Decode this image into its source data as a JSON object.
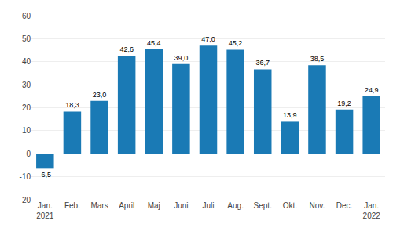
{
  "chart_data": {
    "type": "bar",
    "categories": [
      "Jan.\n2021",
      "Feb.",
      "Mars",
      "April",
      "Maj",
      "Juni",
      "Juli",
      "Aug.",
      "Sept.",
      "Okt.",
      "Nov.",
      "Dec.",
      "Jan.\n2022"
    ],
    "values": [
      -6.5,
      18.3,
      23.0,
      42.6,
      45.4,
      39.0,
      47.0,
      45.2,
      36.7,
      13.9,
      38.5,
      19.2,
      24.9
    ],
    "value_labels": [
      "-6,5",
      "18,3",
      "23,0",
      "42,6",
      "45,4",
      "39,0",
      "47,0",
      "45,2",
      "36,7",
      "13,9",
      "38,5",
      "19,2",
      "24,9"
    ],
    "data_labels": true,
    "color": "#1a7ab5",
    "ylim": [
      -20,
      60
    ],
    "yticks": [
      -20,
      -10,
      0,
      10,
      20,
      30,
      40,
      50,
      60
    ],
    "grid": true
  }
}
